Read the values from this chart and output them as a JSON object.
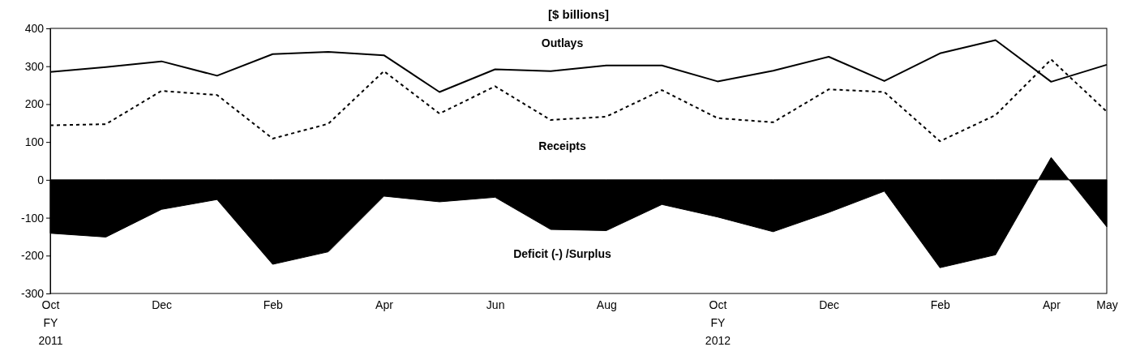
{
  "chart_data": {
    "type": "line",
    "title": "[$ billions]",
    "categories": [
      "Oct\nFY\n2011",
      null,
      "Dec",
      null,
      "Feb",
      null,
      "Apr",
      null,
      "Jun",
      null,
      "Aug",
      null,
      "Oct\nFY\n2012",
      null,
      "Dec",
      null,
      "Feb",
      null,
      "Apr",
      "May"
    ],
    "series": [
      {
        "name": "Outlays",
        "color": "#000000",
        "line_style": "solid",
        "values": [
          285,
          298,
          313,
          275,
          332,
          338,
          329,
          232,
          292,
          287,
          302,
          302,
          260,
          288,
          325,
          261,
          334,
          369,
          259,
          304
        ]
      },
      {
        "name": "Receipts",
        "color": "#000000",
        "line_style": "dashed",
        "values": [
          144,
          147,
          235,
          224,
          109,
          148,
          287,
          175,
          247,
          158,
          167,
          237,
          163,
          152,
          239,
          232,
          102,
          171,
          318,
          180
        ]
      },
      {
        "name": "Deficit (-) /Surplus",
        "type": "area",
        "color": "#000000",
        "values": [
          -141,
          -151,
          -78,
          -52,
          -223,
          -190,
          -43,
          -58,
          -46,
          -131,
          -134,
          -65,
          -98,
          -137,
          -86,
          -30,
          -232,
          -198,
          59,
          -124
        ]
      }
    ],
    "ylim": [
      -300,
      400
    ],
    "yticks": [
      -300,
      -200,
      -100,
      0,
      100,
      200,
      300,
      400
    ],
    "grid": false
  }
}
